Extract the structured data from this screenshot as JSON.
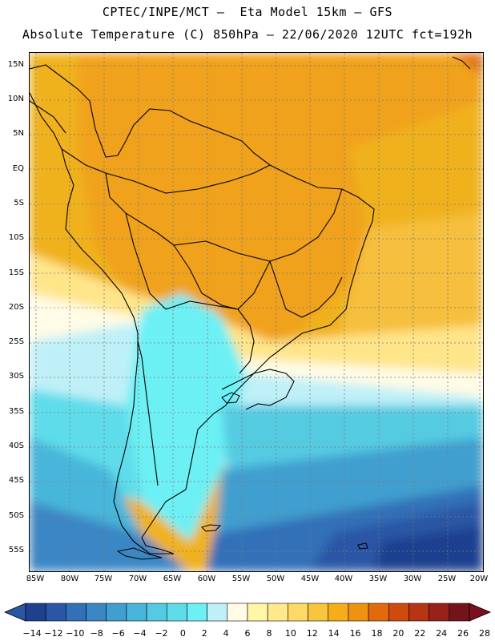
{
  "header": {
    "line1": "CPTEC/INPE/MCT –  Eta Model 15km – GFS",
    "line2": "Absolute Temperature (C) 850hPa – 22/06/2020 12UTC fct=192h"
  },
  "axes": {
    "lat_labels": [
      "15N",
      "10N",
      "5N",
      "EQ",
      "5S",
      "10S",
      "15S",
      "20S",
      "25S",
      "30S",
      "35S",
      "40S",
      "45S",
      "50S",
      "55S"
    ],
    "lon_labels": [
      "85W",
      "80W",
      "75W",
      "70W",
      "65W",
      "60W",
      "55W",
      "50W",
      "45W",
      "40W",
      "35W",
      "30W",
      "25W",
      "20W"
    ]
  },
  "colorbar": {
    "labels": [
      "-14",
      "-12",
      "-10",
      "-8",
      "-6",
      "-4",
      "-2",
      "0",
      "2",
      "4",
      "6",
      "8",
      "10",
      "12",
      "14",
      "16",
      "18",
      "20",
      "22",
      "24",
      "26",
      "28"
    ],
    "colors": [
      "#1f3f8f",
      "#2a56a5",
      "#3370b8",
      "#3b86c4",
      "#3f9fcf",
      "#47b6da",
      "#54cbe2",
      "#5fdcea",
      "#6cf0f4",
      "#bff0f8",
      "#fffbe6",
      "#fff6a8",
      "#ffe98a",
      "#ffd966",
      "#f9c43e",
      "#f5ae1a",
      "#ee9212",
      "#e26a0a",
      "#cf4a0c",
      "#b73515",
      "#982219",
      "#73141b"
    ],
    "under_color": "#2a56a5",
    "over_color": "#7a0f1e"
  }
}
